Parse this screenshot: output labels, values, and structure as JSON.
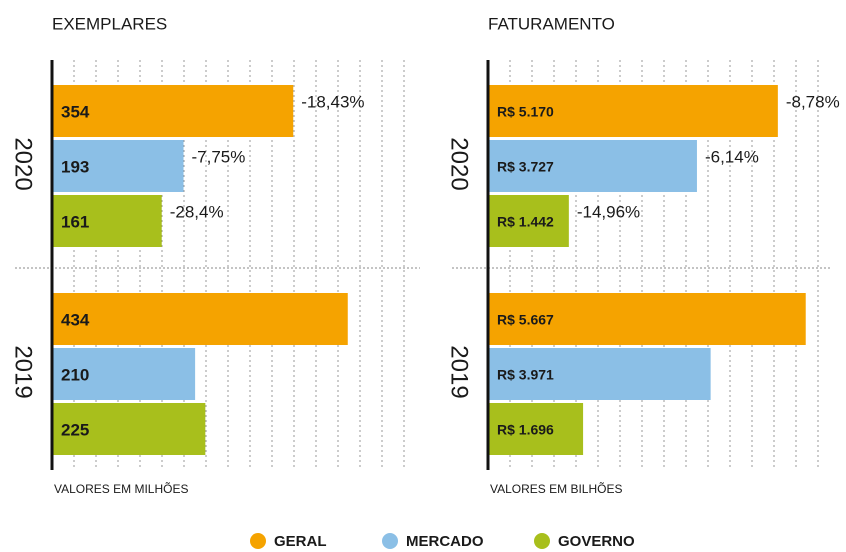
{
  "chart_data": [
    {
      "type": "bar",
      "title": "EXEMPLARES",
      "note": "VALORES EM MILHÕES",
      "categories": [
        "2020",
        "2019"
      ],
      "xlim": [
        0,
        540
      ],
      "grid": true,
      "series": [
        {
          "name": "GERAL",
          "color": "#f5a300",
          "values": [
            354,
            434
          ],
          "changes": [
            -18.43,
            null
          ],
          "change_labels": [
            "-18,43%",
            null
          ]
        },
        {
          "name": "MERCADO",
          "color": "#8bbfe6",
          "values": [
            193,
            210
          ],
          "changes": [
            -7.75,
            null
          ],
          "change_labels": [
            "-7,75%",
            null
          ]
        },
        {
          "name": "GOVERNO",
          "color": "#a8bf1c",
          "values": [
            161,
            225
          ],
          "changes": [
            -28.4,
            null
          ],
          "change_labels": [
            "-28,4%",
            null
          ]
        }
      ]
    },
    {
      "type": "bar",
      "title": "FATURAMENTO",
      "note": "VALORES EM BILHÕES",
      "categories": [
        "2020",
        "2019"
      ],
      "xlim": [
        0,
        6100
      ],
      "grid": true,
      "series": [
        {
          "color": "#f5a300",
          "values": [
            5170,
            5667
          ],
          "value_labels": [
            "R$ 5.170",
            "R$ 5.667"
          ],
          "changes": [
            -8.78,
            null
          ],
          "change_labels": [
            "-8,78%",
            null
          ]
        },
        {
          "color": "#8bbfe6",
          "values": [
            3727,
            3971
          ],
          "value_labels": [
            "R$ 3.727",
            "R$ 3.971"
          ],
          "changes": [
            -6.14,
            null
          ],
          "change_labels": [
            "-6,14%",
            null
          ]
        },
        {
          "color": "#a8bf1c",
          "values": [
            1442,
            1696
          ],
          "value_labels": [
            "R$ 1.442",
            "R$ 1.696"
          ],
          "changes": [
            -14.96,
            null
          ],
          "change_labels": [
            "-14,96%",
            null
          ]
        }
      ]
    }
  ]
}
